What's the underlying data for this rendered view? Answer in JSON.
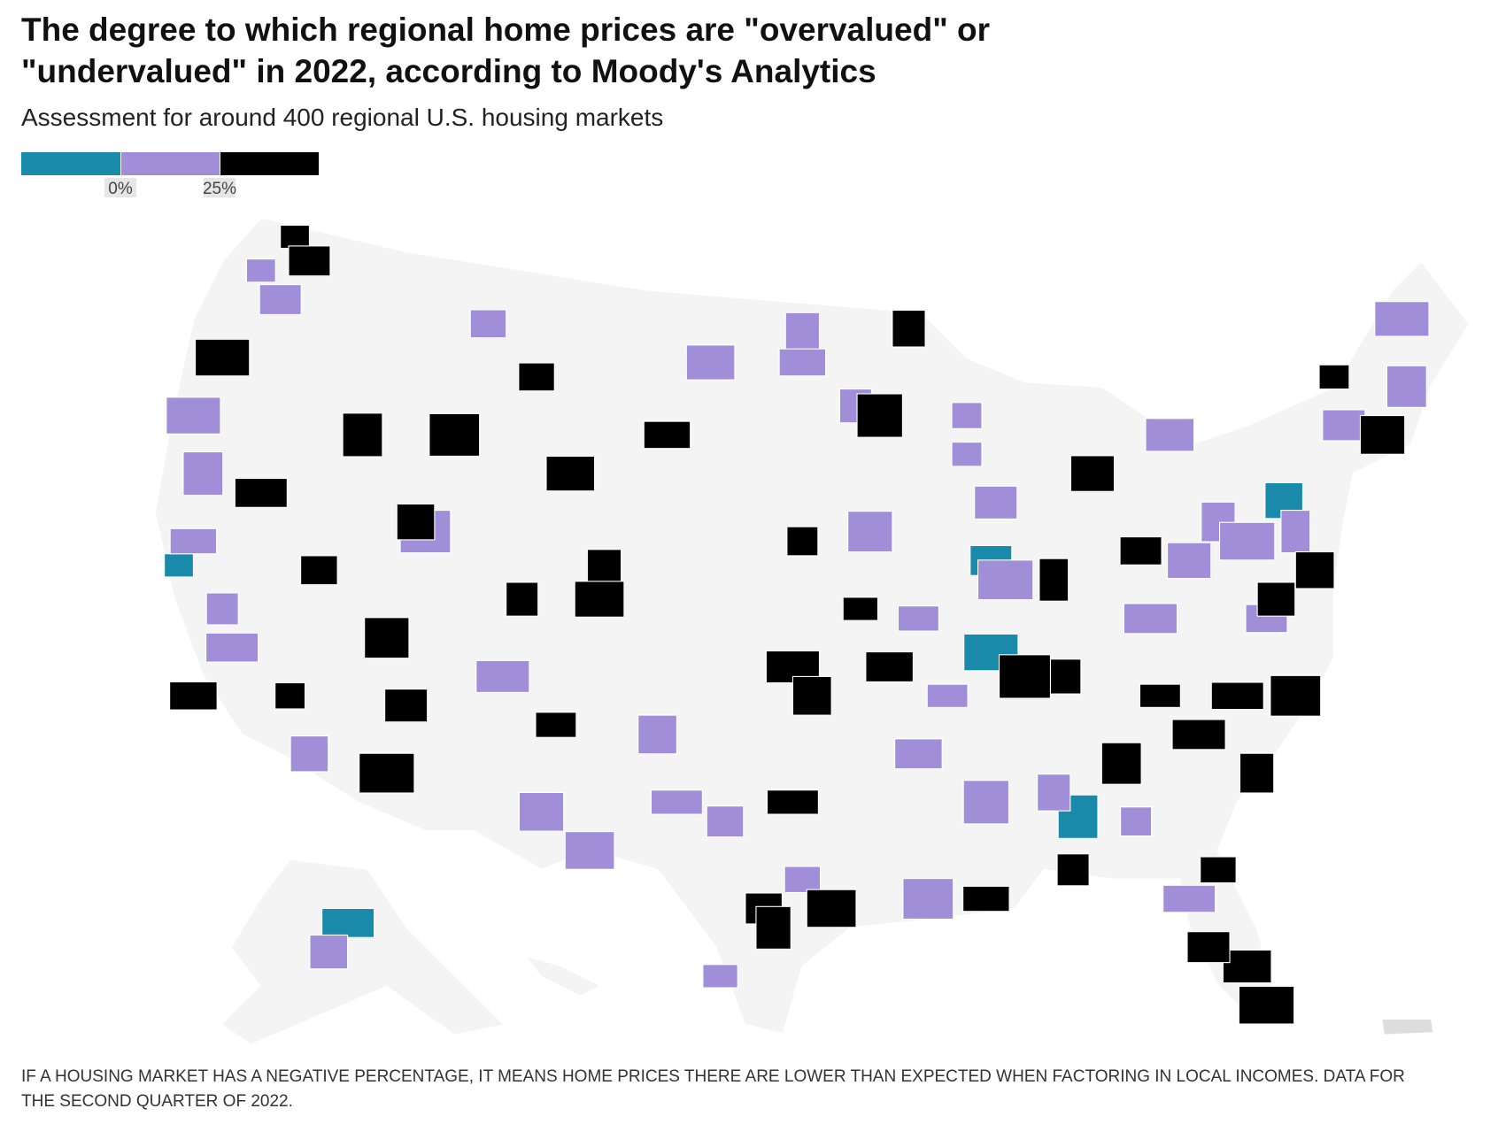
{
  "header": {
    "title_lines": [
      "The degree to which regional home prices are \"overvalued\" or",
      "\"undervalued\" in 2022, according to Moody's Analytics"
    ],
    "subtitle": "Assessment for around 400 regional U.S. housing markets"
  },
  "legend": {
    "colors": [
      "#1a8aab",
      "#a08fd8",
      "#000000"
    ],
    "ticks": [
      {
        "value": 0,
        "label": "0%"
      },
      {
        "value": 25,
        "label": "25%"
      }
    ]
  },
  "note_lines": [
    "IF A HOUSING MARKET HAS A NEGATIVE PERCENTAGE, IT MEANS HOME PRICES THERE ARE LOWER THAN EXPECTED WHEN FACTORING IN LOCAL INCOMES. DATA FOR",
    "THE SECOND QUARTER OF 2022."
  ]
}
